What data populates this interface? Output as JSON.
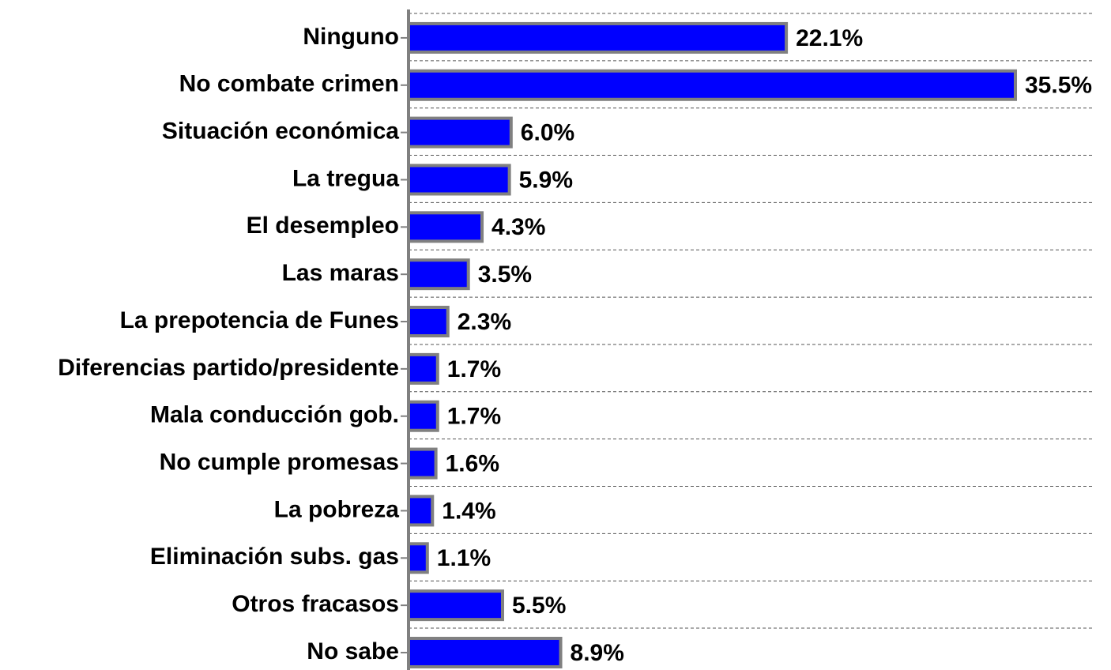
{
  "chart_data": {
    "type": "bar",
    "orientation": "horizontal",
    "categories": [
      "Ninguno",
      "No combate crimen",
      "Situación económica",
      "La tregua",
      "El desempleo",
      "Las maras",
      "La prepotencia de Funes",
      "Diferencias partido/presidente",
      "Mala conducción gob.",
      "No cumple promesas",
      "La pobreza",
      "Eliminación subs. gas",
      "Otros fracasos",
      "No sabe"
    ],
    "values": [
      22.1,
      35.5,
      6.0,
      5.9,
      4.3,
      3.5,
      2.3,
      1.7,
      1.7,
      1.6,
      1.4,
      1.1,
      5.5,
      8.9
    ],
    "value_labels": [
      "22.1%",
      "35.5%",
      "6.0%",
      "5.9%",
      "4.3%",
      "3.5%",
      "2.3%",
      "1.7%",
      "1.7%",
      "1.6%",
      "1.4%",
      "1.1%",
      "5.5%",
      "8.9%"
    ],
    "color": "#0000ff"
  }
}
